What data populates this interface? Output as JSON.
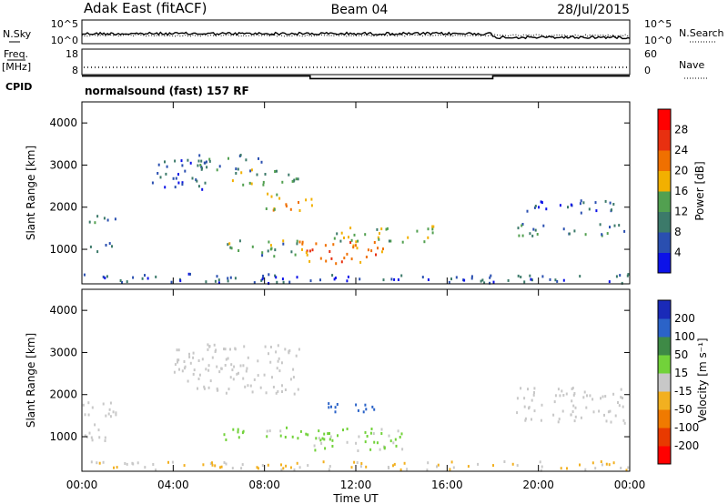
{
  "header": {
    "radar": "Adak East (fitACF)",
    "beam": "Beam 04",
    "date": "28/Jul/2015"
  },
  "noise_panel": {
    "left_label": "N.Sky",
    "right_label": "N.Search",
    "left_ticks": [
      "10^5",
      "10^0"
    ],
    "right_ticks": [
      "10^5",
      "10^0"
    ]
  },
  "freq_panel": {
    "left_label_1": "Freq.",
    "left_label_2": "[MHz]",
    "right_label": "Nave",
    "left_ticks": [
      "18",
      "8"
    ],
    "right_ticks": [
      "60",
      "0"
    ],
    "frequency_mhz": [
      {
        "t_start": "00:00",
        "t_end": "10:00",
        "value": 11
      },
      {
        "t_start": "10:00",
        "t_end": "18:00",
        "value": 10
      },
      {
        "t_start": "18:00",
        "t_end": "24:00",
        "value": 11
      }
    ]
  },
  "cpid": {
    "label": "CPID",
    "text": "normalsound (fast) 157 RF"
  },
  "chart_data": [
    {
      "type": "heatmap",
      "title": "",
      "xlabel": "Time UT",
      "ylabel": "Slant Range [km]",
      "x_ticks": [
        "00:00",
        "04:00",
        "08:00",
        "12:00",
        "16:00",
        "20:00",
        "00:00"
      ],
      "y_ticks": [
        "1000",
        "2000",
        "3000",
        "4000"
      ],
      "ylim": [
        180,
        4500
      ],
      "colorbar_label": "Power [dB]",
      "colorbar_ticks": [
        "4",
        "8",
        "12",
        "16",
        "20",
        "24",
        "28"
      ],
      "colorbar_range": [
        0,
        32
      ],
      "colorbar_colors": [
        "#0c12e8",
        "#2a4fb0",
        "#3c7a6a",
        "#52a050",
        "#f2b000",
        "#f07000",
        "#e83010",
        "#ff0000"
      ],
      "regions": [
        {
          "t0": 0.0,
          "t1": 1.5,
          "r0": 1550,
          "r1": 1800,
          "level": 8
        },
        {
          "t0": 0.0,
          "t1": 1.3,
          "r0": 900,
          "r1": 1150,
          "level": 10
        },
        {
          "t0": 3.0,
          "t1": 5.5,
          "r0": 2400,
          "r1": 3150,
          "level": 7
        },
        {
          "t0": 5.0,
          "t1": 8.2,
          "r0": 2850,
          "r1": 3250,
          "level": 9
        },
        {
          "t0": 6.5,
          "t1": 9.5,
          "r0": 2500,
          "r1": 2900,
          "level": 14
        },
        {
          "t0": 8.0,
          "t1": 10.2,
          "r0": 1900,
          "r1": 2350,
          "level": 18
        },
        {
          "t0": 6.2,
          "t1": 9.5,
          "r0": 800,
          "r1": 1200,
          "level": 12
        },
        {
          "t0": 9.5,
          "t1": 13.5,
          "r0": 650,
          "r1": 1200,
          "level": 22
        },
        {
          "t0": 11.0,
          "t1": 15.5,
          "r0": 1150,
          "r1": 1550,
          "level": 14
        },
        {
          "t0": 19.0,
          "t1": 23.5,
          "r0": 1850,
          "r1": 2150,
          "level": 7
        },
        {
          "t0": 19.0,
          "t1": 23.8,
          "r0": 1300,
          "r1": 1600,
          "level": 10
        },
        {
          "t0": 0.0,
          "t1": 24.0,
          "r0": 180,
          "r1": 400,
          "level": 6
        }
      ]
    },
    {
      "type": "heatmap",
      "title": "",
      "xlabel": "Time UT",
      "ylabel": "Slant Range [km]",
      "x_ticks": [
        "00:00",
        "04:00",
        "08:00",
        "12:00",
        "16:00",
        "20:00",
        "00:00"
      ],
      "y_ticks": [
        "1000",
        "2000",
        "3000",
        "4000"
      ],
      "ylim": [
        180,
        4500
      ],
      "colorbar_label": "Velocity [m s⁻¹]",
      "colorbar_ticks": [
        "200",
        "100",
        "50",
        "15",
        "-15",
        "-50",
        "-100",
        "-200"
      ],
      "colorbar_range": [
        -250,
        250
      ],
      "colorbar_colors": [
        "#1a2ab8",
        "#2b63c8",
        "#3e8a46",
        "#72d23a",
        "#c8c8c8",
        "#f2b020",
        "#f07a00",
        "#e83a00",
        "#ff0000"
      ],
      "regions": [
        {
          "t0": 0.0,
          "t1": 1.5,
          "r0": 850,
          "r1": 1800,
          "level": 0
        },
        {
          "t0": 4.0,
          "t1": 9.5,
          "r0": 2000,
          "r1": 3200,
          "level": 0
        },
        {
          "t0": 10.5,
          "t1": 13.5,
          "r0": 1550,
          "r1": 1800,
          "level": 180
        },
        {
          "t0": 6.2,
          "t1": 11.5,
          "r0": 900,
          "r1": 1200,
          "level": 40
        },
        {
          "t0": 9.5,
          "t1": 14.0,
          "r0": 650,
          "r1": 1200,
          "level": 30
        },
        {
          "t0": 19.0,
          "t1": 23.8,
          "r0": 1300,
          "r1": 2150,
          "level": 0
        },
        {
          "t0": 0.0,
          "t1": 24.0,
          "r0": 180,
          "r1": 400,
          "level": -30
        }
      ]
    }
  ]
}
